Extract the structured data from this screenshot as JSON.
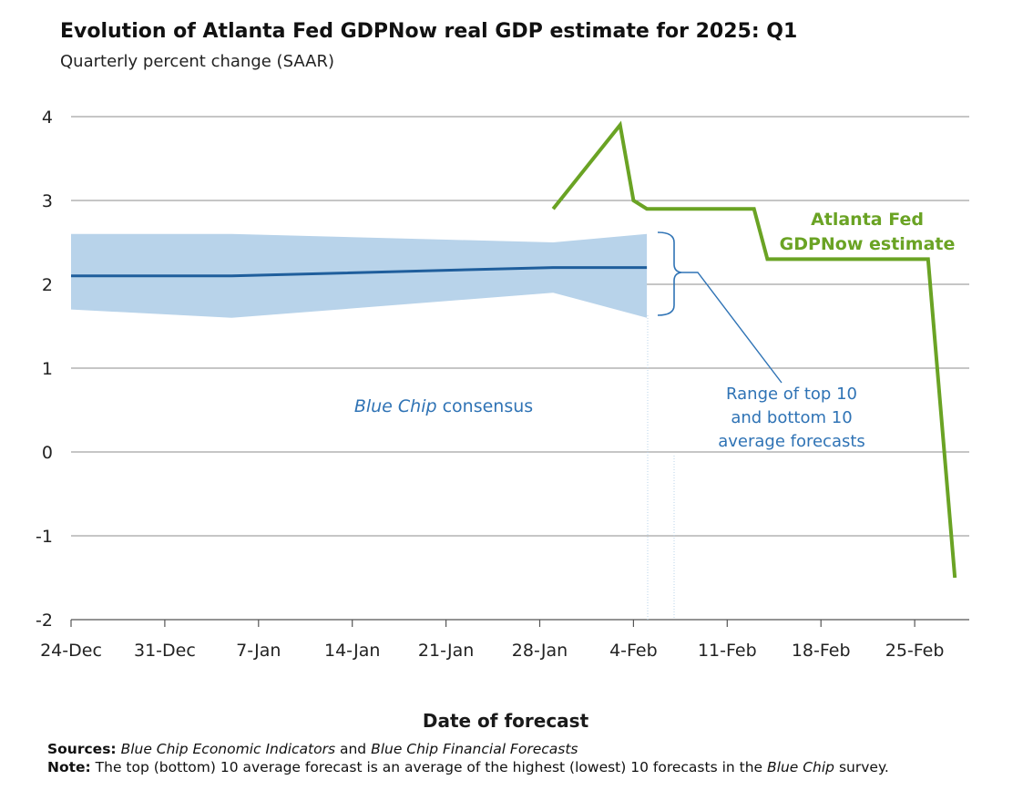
{
  "title": "Evolution of Atlanta Fed GDPNow real GDP estimate for 2025: Q1",
  "subtitle": "Quarterly percent change (SAAR)",
  "colors": {
    "gdpnow": "#6aa324",
    "consensus": "#1f5e9c",
    "range": "#b8d3ea",
    "annotation": "#2f73b5",
    "grid": "#8c8c8c"
  },
  "sources": {
    "label": "Sources:",
    "part1": "Blue Chip Economic Indicators",
    "and": " and ",
    "part2": "Blue Chip Financial Forecasts"
  },
  "note": {
    "label": "Note:",
    "text1": " The top (bottom) 10 average forecast is an average of the highest (lowest) 10 forecasts in the ",
    "italic": "Blue Chip",
    "text2": " survey."
  },
  "chart_data": {
    "type": "line",
    "xlabel": "Date of forecast",
    "ylabel": "",
    "ylim": [
      -2,
      4
    ],
    "yticks": [
      "4",
      "3",
      "2",
      "1",
      "0",
      "-1",
      "-2"
    ],
    "x_tick_labels": [
      "24-Dec",
      "31-Dec",
      "7-Jan",
      "14-Jan",
      "21-Jan",
      "28-Jan",
      "4-Feb",
      "11-Feb",
      "18-Feb",
      "25-Feb"
    ],
    "x_tick_days": [
      0,
      7,
      14,
      21,
      28,
      35,
      42,
      49,
      56,
      63
    ],
    "grid": true,
    "series": [
      {
        "name": "Atlanta Fed GDPNow estimate",
        "kind": "line",
        "points": [
          {
            "x": "Jan 29",
            "d": 36,
            "y": 2.9
          },
          {
            "x": "Feb 3",
            "d": 41,
            "y": 3.9
          },
          {
            "x": "Feb 4",
            "d": 42,
            "y": 3.0
          },
          {
            "x": "Feb 5",
            "d": 43,
            "y": 2.9
          },
          {
            "x": "Feb 13",
            "d": 51,
            "y": 2.9
          },
          {
            "x": "Feb 14",
            "d": 52,
            "y": 2.3
          },
          {
            "x": "Feb 26",
            "d": 64,
            "y": 2.3
          },
          {
            "x": "Feb 28",
            "d": 66,
            "y": -1.5
          }
        ]
      },
      {
        "name": "Blue Chip consensus",
        "kind": "line",
        "points": [
          {
            "x": "Dec 24",
            "d": 0,
            "y": 2.1
          },
          {
            "x": "Jan 5",
            "d": 12,
            "y": 2.1
          },
          {
            "x": "Jan 29",
            "d": 36,
            "y": 2.2
          },
          {
            "x": "Feb 5",
            "d": 43,
            "y": 2.2
          }
        ]
      },
      {
        "name": "Range of top 10 and bottom 10 average forecasts",
        "kind": "band",
        "upper": [
          {
            "x": "Dec 24",
            "d": 0,
            "y": 2.6
          },
          {
            "x": "Jan 5",
            "d": 12,
            "y": 2.6
          },
          {
            "x": "Jan 29",
            "d": 36,
            "y": 2.5
          },
          {
            "x": "Feb 5",
            "d": 43,
            "y": 2.6
          }
        ],
        "lower": [
          {
            "x": "Dec 24",
            "d": 0,
            "y": 1.7
          },
          {
            "x": "Jan 5",
            "d": 12,
            "y": 1.6
          },
          {
            "x": "Jan 29",
            "d": 36,
            "y": 1.9
          },
          {
            "x": "Feb 5",
            "d": 43,
            "y": 1.6
          }
        ]
      }
    ],
    "annotations": {
      "gdpnow_line1": "Atlanta Fed",
      "gdpnow_line2": "GDPNow estimate",
      "consensus_italic": "Blue Chip",
      "consensus_rest": " consensus",
      "range_line1": "Range of top 10",
      "range_line2": "and bottom 10",
      "range_line3": "average forecasts"
    }
  }
}
